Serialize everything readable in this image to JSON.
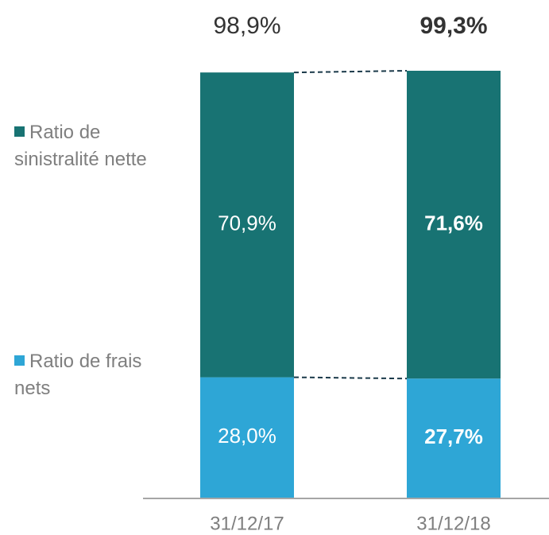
{
  "chart_data": {
    "type": "stacked-bar",
    "categories": [
      "31/12/17",
      "31/12/18"
    ],
    "series": [
      {
        "name": "Ratio de frais nets",
        "color": "#2ea6d6",
        "values": [
          28.0,
          27.7
        ],
        "value_labels": [
          "28,0%",
          "27,7%"
        ]
      },
      {
        "name": "Ratio de sinistralité nette",
        "color": "#187373",
        "values": [
          70.9,
          71.6
        ],
        "value_labels": [
          "70,9%",
          "71,6%"
        ]
      }
    ],
    "totals": {
      "values": [
        98.9,
        99.3
      ],
      "value_labels": [
        "98,9%",
        "99,3%"
      ]
    }
  }
}
